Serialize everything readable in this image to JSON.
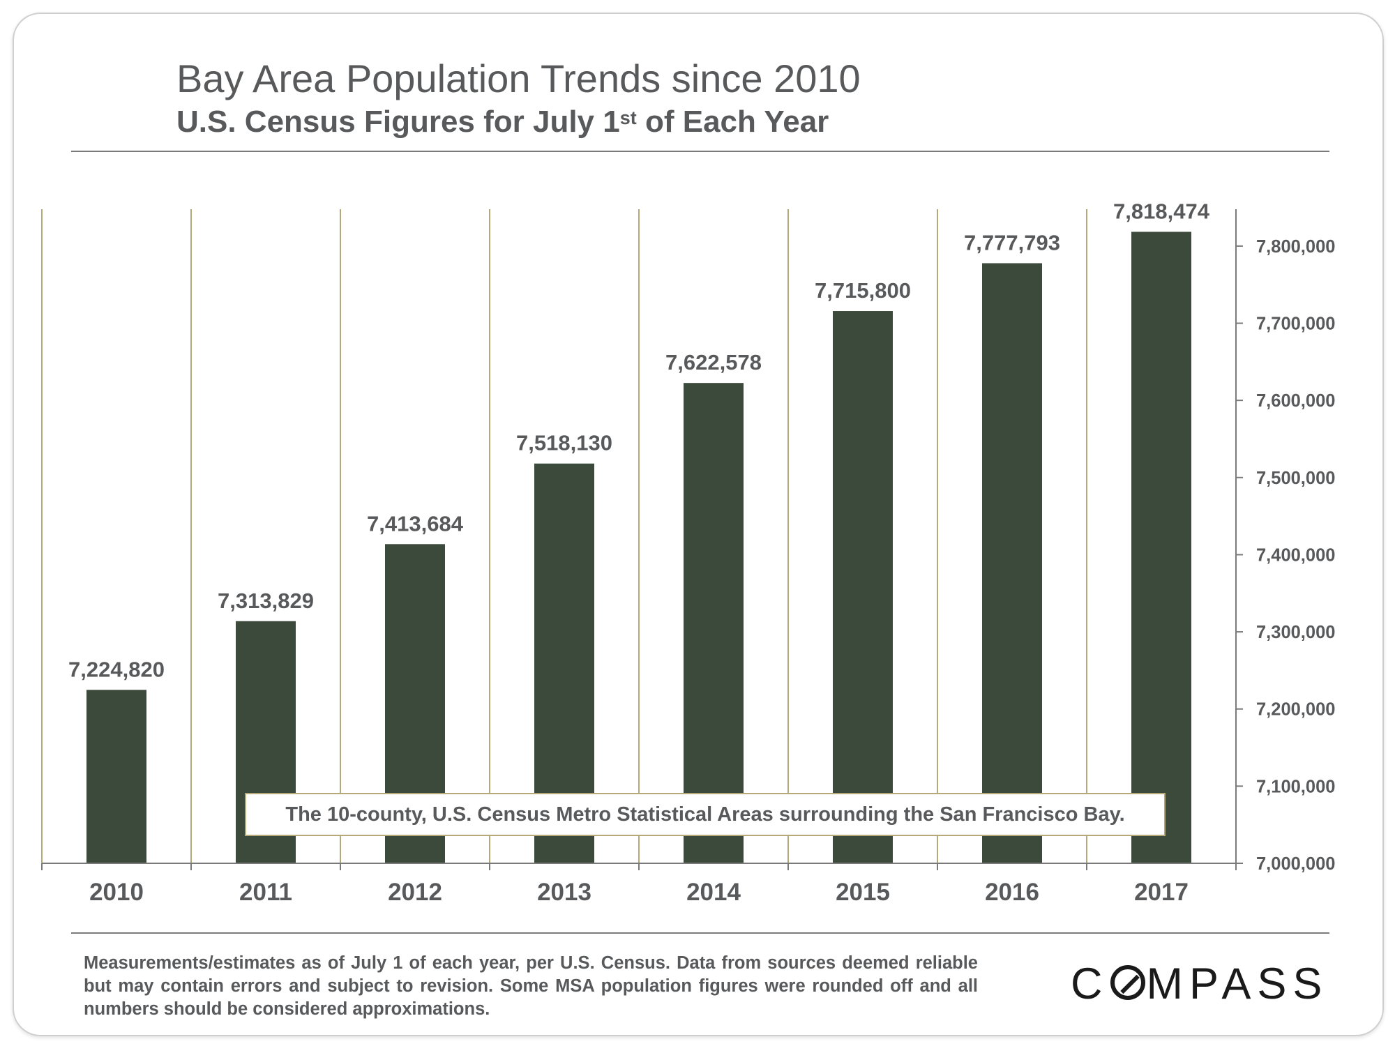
{
  "header": {
    "title": "Bay Area Population Trends since 2010",
    "subtitle_prefix": "U.S. Census Figures for July 1",
    "subtitle_sup": "st",
    "subtitle_suffix": " of Each Year"
  },
  "chart_data": {
    "type": "bar",
    "categories": [
      "2010",
      "2011",
      "2012",
      "2013",
      "2014",
      "2015",
      "2016",
      "2017"
    ],
    "values": [
      7224820,
      7313829,
      7413684,
      7518130,
      7622578,
      7715800,
      7777793,
      7818474
    ],
    "data_labels": [
      "7,224,820",
      "7,313,829",
      "7,413,684",
      "7,518,130",
      "7,622,578",
      "7,715,800",
      "7,777,793",
      "7,818,474"
    ],
    "y_ticks": [
      7000000,
      7100000,
      7200000,
      7300000,
      7400000,
      7500000,
      7600000,
      7700000,
      7800000
    ],
    "y_tick_labels": [
      "7,000,000",
      "7,100,000",
      "7,200,000",
      "7,300,000",
      "7,400,000",
      "7,500,000",
      "7,600,000",
      "7,700,000",
      "7,800,000"
    ],
    "ylim": [
      7000000,
      7850000
    ],
    "y_axis_side": "right",
    "grid": "vertical category separators",
    "title": "Bay Area Population Trends since 2010",
    "xlabel": "",
    "ylabel": ""
  },
  "annotation": "The 10-county, U.S. Census Metro Statistical Areas surrounding the San Francisco Bay.",
  "footnote": "Measurements/estimates as of July 1 of each year, per U.S. Census. Data from sources deemed reliable but may contain errors and subject to revision. Some MSA population figures were rounded off and all numbers should be considered approximations.",
  "logo": {
    "before": "C",
    "after": "MPASS",
    "full": "COMPASS"
  },
  "colors": {
    "bar": "#3b4a3a",
    "grid": "#b5a97a",
    "axis": "#7a7a7a",
    "text": "#58595b"
  }
}
